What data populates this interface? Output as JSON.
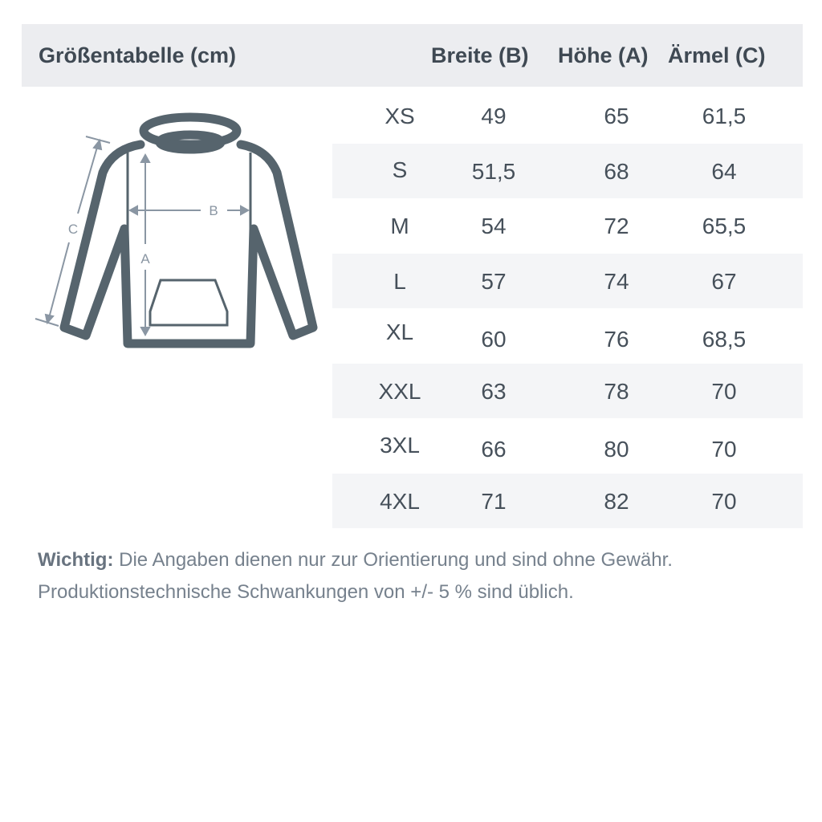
{
  "header": {
    "title": "Größentabelle (cm)",
    "columns": [
      "Breite (B)",
      "Höhe (A)",
      "Ärmel (C)"
    ]
  },
  "diagram": {
    "labels": {
      "a": "A",
      "b": "B",
      "c": "C"
    },
    "stroke_color": "#56646d",
    "arrow_color": "#8a96a3"
  },
  "rows": [
    {
      "size": "XS",
      "b": "49",
      "a": "65",
      "c": "61,5"
    },
    {
      "size": "S",
      "b": "51,5",
      "a": "68",
      "c": "64"
    },
    {
      "size": "M",
      "b": "54",
      "a": "72",
      "c": "65,5"
    },
    {
      "size": "L",
      "b": "57",
      "a": "74",
      "c": "67"
    },
    {
      "size": "XL",
      "b": "60",
      "a": "76",
      "c": "68,5"
    },
    {
      "size": "XXL",
      "b": "63",
      "a": "78",
      "c": "70"
    },
    {
      "size": "3XL",
      "b": "66",
      "a": "80",
      "c": "70"
    },
    {
      "size": "4XL",
      "b": "71",
      "a": "82",
      "c": "70"
    }
  ],
  "note": {
    "bold": "Wichtig:",
    "line1": " Die Angaben dienen nur zur Orientierung und sind ohne Gewähr.",
    "line2": "Produktionstechnische Schwankungen von +/- 5 % sind üblich."
  }
}
